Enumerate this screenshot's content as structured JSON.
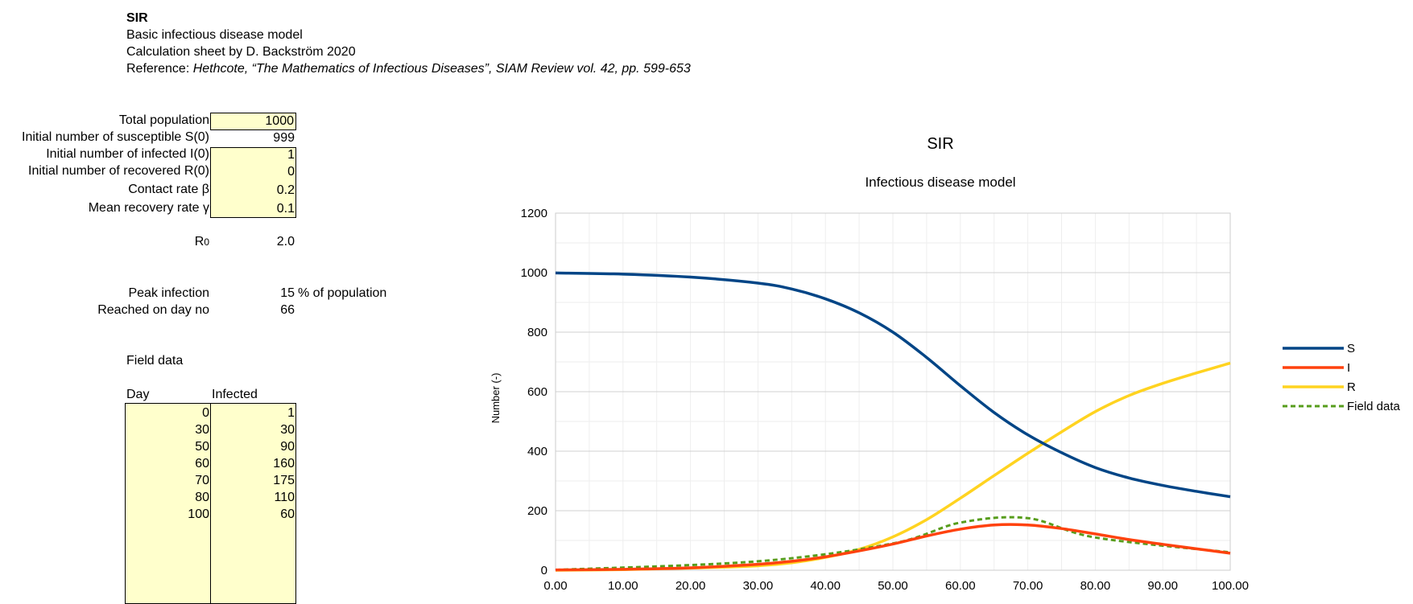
{
  "header": {
    "title": "SIR",
    "subtitle": "Basic infectious disease model",
    "author": "Calculation sheet by D. Backström 2020",
    "reference_prefix": "Reference: ",
    "reference_italic": "Hethcote, “The Mathematics of Infectious Diseases”, SIAM Review vol. 42, pp. 599-653"
  },
  "params": [
    {
      "label": "Total population",
      "value": "1000",
      "editable": true
    },
    {
      "label": "Initial number of susceptible S(0)",
      "value": "999",
      "editable": false
    },
    {
      "label": "Initial number of infected I(0)",
      "value": "1",
      "editable": true
    },
    {
      "label": "Initial number of recovered R(0)",
      "value": "0",
      "editable": true
    },
    {
      "label": "Contact rate β",
      "value": "0.2",
      "editable": true
    },
    {
      "label": "Mean recovery rate γ",
      "value": "0.1",
      "editable": true
    }
  ],
  "r0": {
    "label": "R",
    "sub": "0",
    "value": "2.0"
  },
  "peak": {
    "label": "Peak infection",
    "value": "15",
    "unit": "% of population",
    "day_label": "Reached on day no",
    "day_value": "66"
  },
  "field_data": {
    "title": "Field data",
    "col_day": "Day",
    "col_infected": "Infected",
    "rows": [
      {
        "day": "0",
        "infected": "1"
      },
      {
        "day": "30",
        "infected": "30"
      },
      {
        "day": "50",
        "infected": "90"
      },
      {
        "day": "60",
        "infected": "160"
      },
      {
        "day": "70",
        "infected": "175"
      },
      {
        "day": "80",
        "infected": "110"
      },
      {
        "day": "100",
        "infected": "60"
      }
    ]
  },
  "chart_data": {
    "type": "line",
    "title": "SIR",
    "subtitle": "Infectious disease model",
    "xlabel": "",
    "ylabel": "Number (-)",
    "xlim": [
      0,
      100
    ],
    "ylim": [
      0,
      1200
    ],
    "xticks": [
      "0.00",
      "10.00",
      "20.00",
      "30.00",
      "40.00",
      "50.00",
      "60.00",
      "70.00",
      "80.00",
      "90.00",
      "100.00"
    ],
    "yticks": [
      "0",
      "200",
      "400",
      "600",
      "800",
      "1000",
      "1200"
    ],
    "grid": true,
    "legend_position": "right",
    "series": [
      {
        "name": "S",
        "color": "#004586",
        "dash": false,
        "x": [
          0,
          10,
          20,
          30,
          35,
          40,
          45,
          50,
          55,
          60,
          65,
          70,
          75,
          80,
          85,
          90,
          95,
          100
        ],
        "y": [
          999,
          995,
          985,
          965,
          945,
          912,
          865,
          800,
          715,
          620,
          530,
          455,
          395,
          345,
          310,
          285,
          265,
          247
        ]
      },
      {
        "name": "I",
        "color": "#ff420e",
        "dash": false,
        "x": [
          0,
          10,
          20,
          30,
          35,
          40,
          45,
          50,
          55,
          60,
          65,
          70,
          75,
          80,
          85,
          90,
          95,
          100
        ],
        "y": [
          1,
          3,
          8,
          20,
          30,
          45,
          65,
          88,
          115,
          138,
          152,
          152,
          140,
          122,
          103,
          87,
          72,
          57
        ]
      },
      {
        "name": "R",
        "color": "#ffd320",
        "dash": false,
        "x": [
          0,
          10,
          20,
          30,
          35,
          40,
          45,
          50,
          55,
          60,
          65,
          70,
          75,
          80,
          85,
          90,
          95,
          100
        ],
        "y": [
          0,
          2,
          7,
          15,
          25,
          43,
          70,
          112,
          170,
          242,
          318,
          393,
          465,
          533,
          587,
          628,
          663,
          696
        ]
      },
      {
        "name": "Field data",
        "color": "#579d1c",
        "dash": true,
        "x": [
          0,
          30,
          50,
          60,
          70,
          80,
          100
        ],
        "y": [
          1,
          30,
          90,
          160,
          175,
          110,
          60
        ]
      }
    ]
  }
}
